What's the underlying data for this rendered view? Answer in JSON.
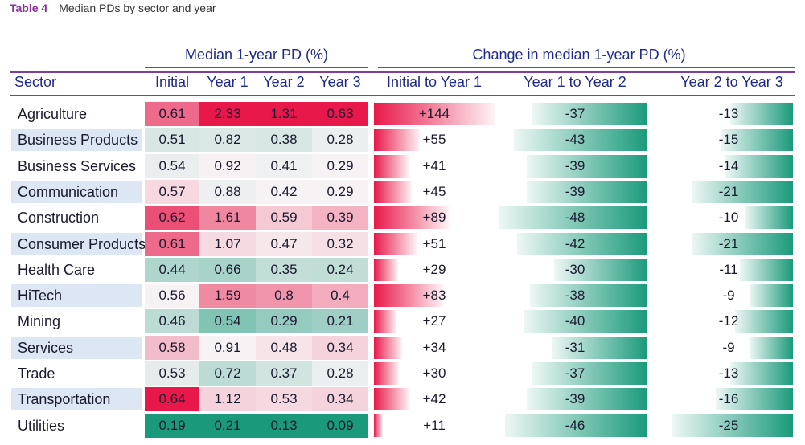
{
  "caption": {
    "number": "Table 4",
    "title": "Median PDs by sector and year"
  },
  "groups": {
    "median": "Median 1-year PD (%)",
    "change": "Change in median 1-year PD (%)"
  },
  "headers": {
    "sector": "Sector",
    "initial": "Initial",
    "year1": "Year 1",
    "year2": "Year 2",
    "year3": "Year 3",
    "ch01": "Initial to Year 1",
    "ch12": "Year 1 to Year 2",
    "ch23": "Year 2 to Year 3"
  },
  "rows": [
    {
      "sector": "Agriculture",
      "initial": "0.61",
      "year1": "2.33",
      "year2": "1.31",
      "year3": "0.63",
      "ch01": "+144",
      "ch12": "-37",
      "ch23": "-13"
    },
    {
      "sector": "Business Products",
      "initial": "0.51",
      "year1": "0.82",
      "year2": "0.38",
      "year3": "0.28",
      "ch01": "+55",
      "ch12": "-43",
      "ch23": "-15"
    },
    {
      "sector": "Business Services",
      "initial": "0.54",
      "year1": "0.92",
      "year2": "0.41",
      "year3": "0.29",
      "ch01": "+41",
      "ch12": "-39",
      "ch23": "-14"
    },
    {
      "sector": "Communication",
      "initial": "0.57",
      "year1": "0.88",
      "year2": "0.42",
      "year3": "0.29",
      "ch01": "+45",
      "ch12": "-39",
      "ch23": "-21"
    },
    {
      "sector": "Construction",
      "initial": "0.62",
      "year1": "1.61",
      "year2": "0.59",
      "year3": "0.39",
      "ch01": "+89",
      "ch12": "-48",
      "ch23": "-10"
    },
    {
      "sector": "Consumer Products",
      "initial": "0.61",
      "year1": "1.07",
      "year2": "0.47",
      "year3": "0.32",
      "ch01": "+51",
      "ch12": "-42",
      "ch23": "-21"
    },
    {
      "sector": "Health Care",
      "initial": "0.44",
      "year1": "0.66",
      "year2": "0.35",
      "year3": "0.24",
      "ch01": "+29",
      "ch12": "-30",
      "ch23": "-11"
    },
    {
      "sector": "HiTech",
      "initial": "0.56",
      "year1": "1.59",
      "year2": "0.8",
      "year3": "0.4",
      "ch01": "+83",
      "ch12": "-38",
      "ch23": "-9"
    },
    {
      "sector": "Mining",
      "initial": "0.46",
      "year1": "0.54",
      "year2": "0.29",
      "year3": "0.21",
      "ch01": "+27",
      "ch12": "-40",
      "ch23": "-12"
    },
    {
      "sector": "Services",
      "initial": "0.58",
      "year1": "0.91",
      "year2": "0.48",
      "year3": "0.34",
      "ch01": "+34",
      "ch12": "-31",
      "ch23": "-9"
    },
    {
      "sector": "Trade",
      "initial": "0.53",
      "year1": "0.72",
      "year2": "0.37",
      "year3": "0.28",
      "ch01": "+30",
      "ch12": "-37",
      "ch23": "-13"
    },
    {
      "sector": "Transportation",
      "initial": "0.64",
      "year1": "1.12",
      "year2": "0.53",
      "year3": "0.34",
      "ch01": "+42",
      "ch12": "-39",
      "ch23": "-16"
    },
    {
      "sector": "Utilities",
      "initial": "0.19",
      "year1": "0.21",
      "year2": "0.13",
      "year3": "0.09",
      "ch01": "+11",
      "ch12": "-46",
      "ch23": "-25"
    }
  ],
  "colors": {
    "red": "#e8184a",
    "pale": "#f7f3f5",
    "green": "#1a9a7a",
    "band": "#dce6f5",
    "rule": "#7b3f9e",
    "header": "#1f2a8c"
  }
}
